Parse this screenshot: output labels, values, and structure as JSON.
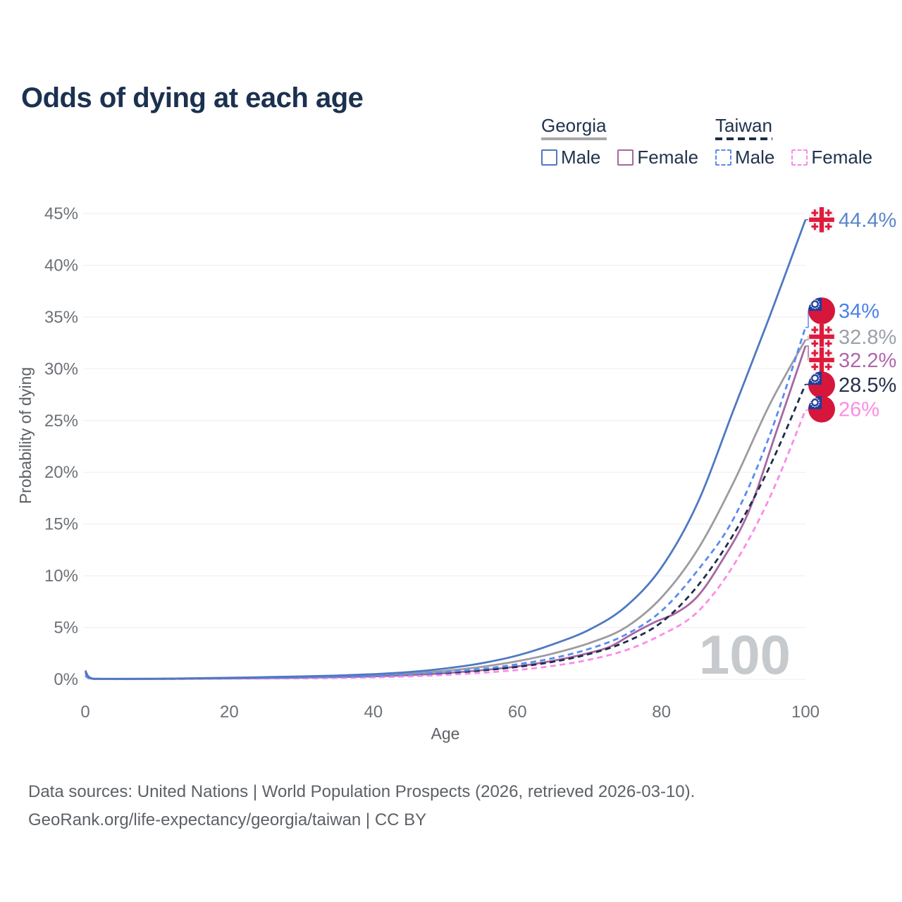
{
  "title": "Odds of dying at each age",
  "legend": {
    "groups": [
      {
        "name": "Georgia",
        "items": [
          {
            "label": "Male"
          },
          {
            "label": "Female"
          }
        ]
      },
      {
        "name": "Taiwan",
        "items": [
          {
            "label": "Male"
          },
          {
            "label": "Female"
          }
        ]
      }
    ]
  },
  "chart_data": {
    "type": "line",
    "title": "Odds of dying at each age",
    "xlabel": "Age",
    "ylabel": "Probability of dying",
    "xlim": [
      0,
      100
    ],
    "ylim": [
      0,
      45
    ],
    "x_ticks": [
      0,
      20,
      40,
      60,
      80,
      100
    ],
    "y_ticks": [
      0,
      5,
      10,
      15,
      20,
      25,
      30,
      35,
      40,
      45
    ],
    "y_tick_suffix": "%",
    "grid": "horizontal",
    "legend_position": "top-right",
    "watermark": "100",
    "series": [
      {
        "name": "Georgia",
        "sex": "both",
        "color": "#9c9ca0",
        "dashed": false,
        "end_label": "32.8%",
        "label_color": "#9ba1a7",
        "label_y": 33.1,
        "flag": "georgia-flag",
        "points": [
          [
            0,
            0.75
          ],
          [
            1,
            0.06
          ],
          [
            5,
            0.04
          ],
          [
            10,
            0.05
          ],
          [
            15,
            0.08
          ],
          [
            20,
            0.12
          ],
          [
            25,
            0.17
          ],
          [
            30,
            0.22
          ],
          [
            35,
            0.3
          ],
          [
            40,
            0.4
          ],
          [
            45,
            0.57
          ],
          [
            50,
            0.82
          ],
          [
            55,
            1.2
          ],
          [
            60,
            1.75
          ],
          [
            65,
            2.5
          ],
          [
            70,
            3.5
          ],
          [
            75,
            5.0
          ],
          [
            80,
            7.9
          ],
          [
            85,
            12.5
          ],
          [
            90,
            19.0
          ],
          [
            95,
            26.5
          ],
          [
            100,
            32.8
          ]
        ]
      },
      {
        "name": "Georgia Female",
        "sex": "female",
        "color": "#a767a2",
        "dashed": false,
        "end_label": "32.2%",
        "label_color": "#b066ab",
        "label_y": 30.85,
        "flag": "georgia-flag",
        "points": [
          [
            0,
            0.65
          ],
          [
            1,
            0.05
          ],
          [
            5,
            0.035
          ],
          [
            10,
            0.04
          ],
          [
            15,
            0.06
          ],
          [
            20,
            0.09
          ],
          [
            25,
            0.12
          ],
          [
            30,
            0.16
          ],
          [
            35,
            0.21
          ],
          [
            40,
            0.28
          ],
          [
            45,
            0.4
          ],
          [
            50,
            0.6
          ],
          [
            55,
            0.88
          ],
          [
            60,
            1.25
          ],
          [
            65,
            1.8
          ],
          [
            70,
            2.55
          ],
          [
            73,
            3.2
          ],
          [
            76,
            4.4
          ],
          [
            79,
            5.5
          ],
          [
            82,
            6.4
          ],
          [
            85,
            8.0
          ],
          [
            88,
            11.0
          ],
          [
            92,
            16.0
          ],
          [
            96,
            24.0
          ],
          [
            100,
            32.2
          ]
        ]
      },
      {
        "name": "Taiwan",
        "sex": "both",
        "color": "#1e2d49",
        "dashed": true,
        "end_label": "28.5%",
        "label_color": "#25304a",
        "label_y": 28.45,
        "flag": "taiwan-flag",
        "points": [
          [
            0,
            0.38
          ],
          [
            1,
            0.045
          ],
          [
            5,
            0.028
          ],
          [
            10,
            0.035
          ],
          [
            15,
            0.06
          ],
          [
            20,
            0.085
          ],
          [
            25,
            0.11
          ],
          [
            30,
            0.14
          ],
          [
            35,
            0.19
          ],
          [
            40,
            0.26
          ],
          [
            45,
            0.38
          ],
          [
            50,
            0.58
          ],
          [
            55,
            0.85
          ],
          [
            60,
            1.2
          ],
          [
            65,
            1.7
          ],
          [
            70,
            2.45
          ],
          [
            75,
            3.6
          ],
          [
            80,
            5.5
          ],
          [
            85,
            9.0
          ],
          [
            90,
            14.0
          ],
          [
            95,
            20.5
          ],
          [
            100,
            28.5
          ]
        ]
      },
      {
        "name": "Taiwan Female",
        "sex": "female",
        "color": "#fa8ce8",
        "dashed": true,
        "end_label": "26%",
        "label_color": "#fa8ce8",
        "label_y": 26.1,
        "flag": "taiwan-flag",
        "points": [
          [
            0,
            0.32
          ],
          [
            1,
            0.04
          ],
          [
            5,
            0.022
          ],
          [
            10,
            0.028
          ],
          [
            15,
            0.045
          ],
          [
            20,
            0.06
          ],
          [
            25,
            0.08
          ],
          [
            30,
            0.1
          ],
          [
            35,
            0.14
          ],
          [
            40,
            0.19
          ],
          [
            45,
            0.28
          ],
          [
            50,
            0.43
          ],
          [
            55,
            0.63
          ],
          [
            60,
            0.9
          ],
          [
            65,
            1.3
          ],
          [
            70,
            1.9
          ],
          [
            75,
            2.8
          ],
          [
            80,
            4.3
          ],
          [
            85,
            6.5
          ],
          [
            90,
            11.0
          ],
          [
            95,
            17.5
          ],
          [
            100,
            26.0
          ]
        ]
      },
      {
        "name": "Taiwan Male",
        "sex": "male",
        "color": "#5a8cf0",
        "dashed": true,
        "end_label": "34%",
        "label_color": "#4b82e9",
        "label_y": 35.6,
        "flag": "taiwan-flag",
        "points": [
          [
            0,
            0.4
          ],
          [
            1,
            0.05
          ],
          [
            5,
            0.03
          ],
          [
            10,
            0.04
          ],
          [
            15,
            0.07
          ],
          [
            20,
            0.1
          ],
          [
            25,
            0.13
          ],
          [
            30,
            0.17
          ],
          [
            35,
            0.23
          ],
          [
            40,
            0.31
          ],
          [
            45,
            0.46
          ],
          [
            50,
            0.7
          ],
          [
            55,
            1.0
          ],
          [
            60,
            1.45
          ],
          [
            65,
            2.05
          ],
          [
            70,
            2.95
          ],
          [
            75,
            4.3
          ],
          [
            80,
            6.6
          ],
          [
            85,
            10.5
          ],
          [
            90,
            15.5
          ],
          [
            95,
            23.5
          ],
          [
            100,
            34.0
          ]
        ]
      },
      {
        "name": "Georgia Male",
        "sex": "male",
        "color": "#4e79c2",
        "dashed": false,
        "end_label": "44.4%",
        "label_color": "#5b86ca",
        "label_y": 44.4,
        "flag": "georgia-flag",
        "points": [
          [
            0,
            0.85
          ],
          [
            1,
            0.07
          ],
          [
            5,
            0.05
          ],
          [
            10,
            0.06
          ],
          [
            15,
            0.1
          ],
          [
            20,
            0.15
          ],
          [
            25,
            0.21
          ],
          [
            30,
            0.28
          ],
          [
            35,
            0.37
          ],
          [
            40,
            0.5
          ],
          [
            45,
            0.7
          ],
          [
            50,
            1.05
          ],
          [
            55,
            1.55
          ],
          [
            60,
            2.3
          ],
          [
            65,
            3.4
          ],
          [
            70,
            4.8
          ],
          [
            75,
            7.0
          ],
          [
            80,
            10.8
          ],
          [
            85,
            17.0
          ],
          [
            90,
            26.0
          ],
          [
            95,
            35.0
          ],
          [
            100,
            44.4
          ]
        ]
      }
    ],
    "flag_colors": {
      "georgia_red": "#e01a3c",
      "georgia_bg": "#f3f3f5",
      "taiwan_red": "#d6173b",
      "taiwan_blue": "#1f3d99"
    }
  },
  "footer": {
    "line1": "Data sources: United Nations | World Population Prospects (2026, retrieved 2026-03-10).",
    "line2": "GeoRank.org/life-expectancy/georgia/taiwan | CC BY"
  }
}
